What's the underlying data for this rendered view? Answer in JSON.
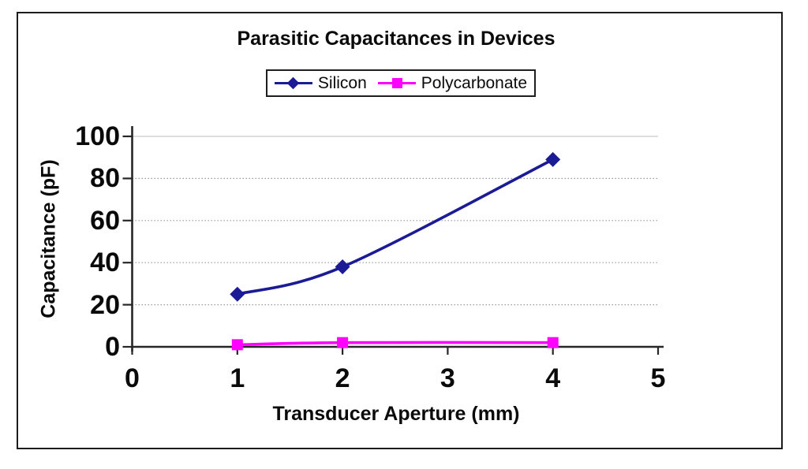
{
  "figure": {
    "background": "#ffffff",
    "frame_color": "#1c1c1c"
  },
  "chart_data": {
    "type": "line",
    "title": "Parasitic Capacitances in Devices",
    "xlabel": "Transducer Aperture (mm)",
    "ylabel": "Capacitance (pF)",
    "x": [
      1,
      2,
      4
    ],
    "series": [
      {
        "name": "Silicon",
        "color": "#1b1b96",
        "marker": "diamond",
        "values": [
          25,
          38,
          89
        ]
      },
      {
        "name": "Polycarbonate",
        "color": "#ff00ff",
        "marker": "square",
        "values": [
          1,
          2,
          2
        ]
      }
    ],
    "xlim": [
      0,
      5
    ],
    "ylim": [
      0,
      100
    ],
    "xticks": [
      0,
      1,
      2,
      3,
      4,
      5
    ],
    "yticks": [
      0,
      20,
      40,
      60,
      80,
      100
    ],
    "grid": "horizontal dotted",
    "legend_position": "top-center",
    "axis_color": "#262626",
    "gridline_color": "#999999",
    "top_gridline_color": "#c9c9c9",
    "text_color": "#0a0a0a"
  }
}
